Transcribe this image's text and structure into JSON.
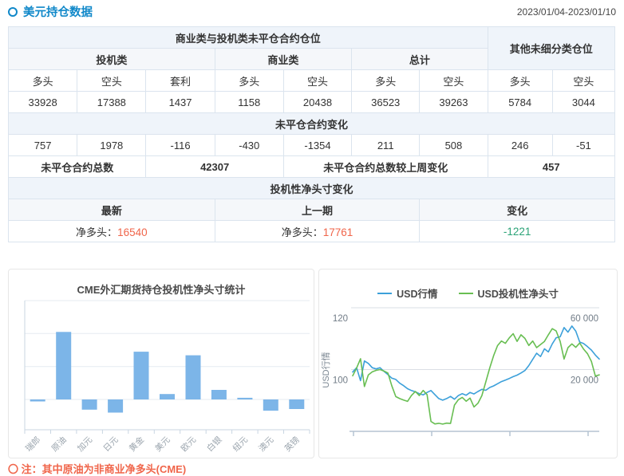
{
  "header": {
    "title": "美元持仓数据",
    "date_range": "2023/01/04-2023/01/10"
  },
  "table": {
    "section1_title": "商业类与投机类未平仓合约仓位",
    "other_title": "其他未细分类仓位",
    "group_headers": [
      "投机类",
      "商业类",
      "总计"
    ],
    "col_headers": [
      "多头",
      "空头",
      "套利",
      "多头",
      "空头",
      "多头",
      "空头",
      "多头",
      "空头"
    ],
    "positions": [
      "33928",
      "17388",
      "1437",
      "1158",
      "20438",
      "36523",
      "39263",
      "5784",
      "3044"
    ],
    "change_title": "未平仓合约变化",
    "changes": [
      "757",
      "1978",
      "-116",
      "-430",
      "-1354",
      "211",
      "508",
      "246",
      "-51"
    ],
    "total_label": "未平仓合约总数",
    "total_value": "42307",
    "total_change_label": "未平仓合约总数较上周变化",
    "total_change_value": "457",
    "net_title": "投机性净头寸变化",
    "net_headers": [
      "最新",
      "上一期",
      "变化"
    ],
    "net_latest_label": "净多头：",
    "net_latest_value": "16540",
    "net_prev_label": "净多头：",
    "net_prev_value": "17761",
    "net_change_value": "-1221"
  },
  "footnote": "〇 注：其中原油为非商业净多头(CME)",
  "colors": {
    "accent_blue": "#1088c9",
    "table_header_blue": "#2a93d5",
    "positive_orange": "#f0654a",
    "negative_green": "#2ba377",
    "bar_blue": "#7cb5e8",
    "line_blue": "#3ca0da",
    "line_green": "#68be52"
  },
  "chart_data": [
    {
      "type": "bar",
      "title": "CME外汇期货持仓投机性净头寸统计",
      "categories": [
        "瑞郎",
        "原油",
        "加元",
        "日元",
        "黄金",
        "美元",
        "欧元",
        "白银",
        "纽元",
        "澳元",
        "英镑"
      ],
      "values": [
        -6000,
        205000,
        -31000,
        -40000,
        145000,
        16540,
        134000,
        29000,
        5000,
        -34000,
        -29000
      ],
      "ylim": [
        -92000,
        300000
      ],
      "grid_step": 100000,
      "bar_color": "#7cb5e8",
      "grid": true,
      "y_tick_labels": []
    },
    {
      "type": "line",
      "legend": [
        "USD行情",
        "USD投机性净头寸"
      ],
      "ylabel_left": "USD行情",
      "left_axis": {
        "tick_labels": [
          "120",
          "100"
        ],
        "min": 80,
        "max": 120
      },
      "right_axis": {
        "tick_labels": [
          "60 000",
          "20 000"
        ],
        "min": -20000,
        "max": 60000
      },
      "series": [
        {
          "name": "USD行情",
          "axis": "left",
          "color": "#3ca0da",
          "values": [
            99.2,
            100.6,
            96.4,
            102.8,
            102.0,
            100.6,
            100.2,
            100.6,
            99.4,
            98.4,
            97.2,
            96.8,
            95.6,
            94.8,
            93.8,
            93.2,
            92.8,
            92.2,
            91.8,
            92.6,
            93.2,
            91.9,
            90.6,
            90.1,
            90.6,
            91.3,
            90.4,
            91.6,
            92.2,
            91.7,
            92.6,
            92.1,
            92.9,
            93.6,
            93.3,
            94.2,
            94.7,
            95.4,
            96.1,
            96.6,
            97.1,
            97.7,
            98.2,
            98.9,
            99.7,
            101.3,
            103.3,
            105.3,
            104.2,
            106.7,
            105.7,
            108.3,
            110.3,
            110.6,
            113.6,
            112.1,
            114.1,
            112.4,
            108.9,
            108.4,
            107.4,
            106.3,
            104.7,
            103.4
          ]
        },
        {
          "name": "USD投机性净头寸",
          "axis": "right",
          "color": "#68be52",
          "values": [
            16000,
            21000,
            27000,
            9000,
            16500,
            18500,
            19500,
            20000,
            19000,
            17800,
            9500,
            2500,
            1200,
            300,
            -600,
            3200,
            5800,
            3200,
            6500,
            3800,
            -13600,
            -15200,
            -14800,
            -15300,
            -14700,
            -14900,
            -3000,
            500,
            2000,
            -500,
            1500,
            -4200,
            -1800,
            3200,
            12000,
            21000,
            29000,
            35500,
            38500,
            37000,
            40500,
            43200,
            38200,
            42500,
            40200,
            35600,
            38500,
            34200,
            36200,
            38200,
            42500,
            46500,
            45000,
            38200,
            26800,
            34200,
            36600,
            34400,
            37200,
            33200,
            30200,
            25200,
            15800,
            16540
          ]
        }
      ]
    }
  ]
}
